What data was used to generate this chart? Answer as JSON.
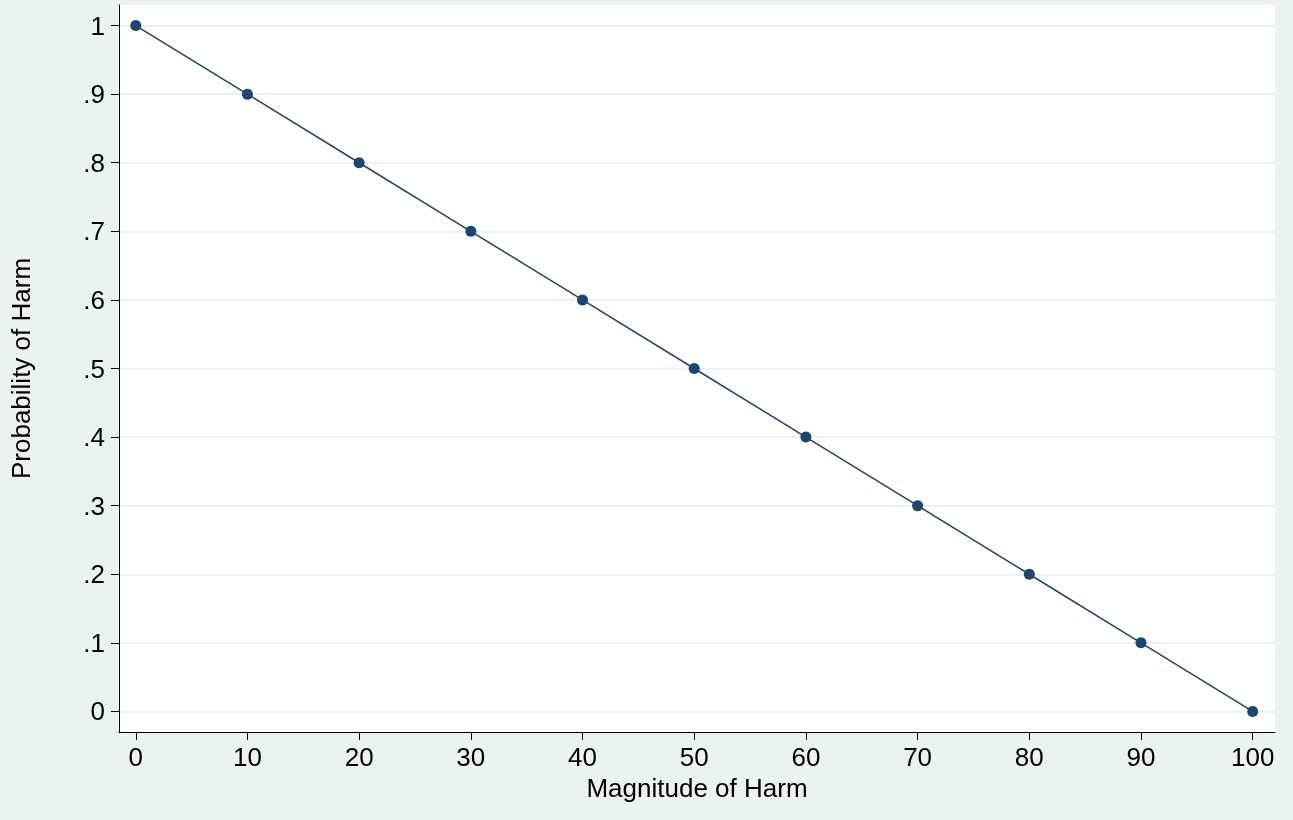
{
  "chart_data": {
    "type": "line",
    "xlabel": "Magnitude of Harm",
    "ylabel": "Probability of Harm",
    "x": [
      0,
      10,
      20,
      30,
      40,
      50,
      60,
      70,
      80,
      90,
      100
    ],
    "series": [
      {
        "color": "#1a476f",
        "values": [
          1,
          0.9,
          0.8,
          0.7,
          0.6,
          0.5,
          0.4,
          0.3,
          0.2,
          0.1,
          0
        ]
      }
    ],
    "xlim": [
      -1.5,
      102
    ],
    "ylim": [
      -0.03,
      1.03
    ],
    "xticks": [
      0,
      10,
      20,
      30,
      40,
      50,
      60,
      70,
      80,
      90,
      100
    ],
    "yticks": [
      0,
      {
        "value": 0.1,
        "label": ".1"
      },
      {
        "value": 0.2,
        "label": ".2"
      },
      {
        "value": 0.3,
        "label": ".3"
      },
      {
        "value": 0.4,
        "label": ".4"
      },
      {
        "value": 0.5,
        "label": ".5"
      },
      {
        "value": 0.6,
        "label": ".6"
      },
      {
        "value": 0.7,
        "label": ".7"
      },
      {
        "value": 0.8,
        "label": ".8"
      },
      {
        "value": 0.9,
        "label": ".9"
      },
      1
    ],
    "grid": "y",
    "marker": "circle",
    "line_style": "solid"
  }
}
